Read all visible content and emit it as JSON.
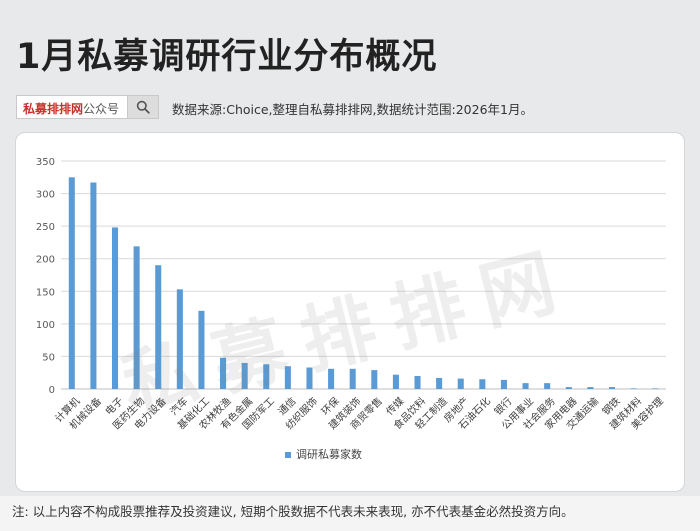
{
  "header": {
    "title": "1月私募调研行业分布概况",
    "brand": "私募排排网",
    "brand_suffix": "公众号",
    "source": "数据来源:Choice,整理自私募排排网,数据统计范围:2026年1月。"
  },
  "watermark": "私募排排网",
  "footer": {
    "note": "注: 以上内容不构成股票推荐及投资建议, 短期个股数据不代表未来表现, 亦不代表基金必然投资方向。"
  },
  "colors": {
    "bar": "#5b9bd5",
    "grid": "#d9d9d9",
    "brand": "#c8312c"
  },
  "chart_data": {
    "type": "bar",
    "title": "",
    "xlabel": "",
    "ylabel": "",
    "ylim": [
      0,
      350
    ],
    "yticks": [
      0,
      50,
      100,
      150,
      200,
      250,
      300,
      350
    ],
    "grid": true,
    "legend_position": "bottom",
    "categories": [
      "计算机",
      "机械设备",
      "电子",
      "医药生物",
      "电力设备",
      "汽车",
      "基础化工",
      "农林牧渔",
      "有色金属",
      "国防军工",
      "通信",
      "纺织服饰",
      "环保",
      "建筑装饰",
      "商贸零售",
      "传媒",
      "食品饮料",
      "轻工制造",
      "房地产",
      "石油石化",
      "银行",
      "公用事业",
      "社会服务",
      "家用电器",
      "交通运输",
      "钢铁",
      "建筑材料",
      "美容护理"
    ],
    "series": [
      {
        "name": "调研私募家数",
        "values": [
          325,
          317,
          248,
          219,
          190,
          153,
          120,
          48,
          40,
          38,
          35,
          33,
          31,
          31,
          29,
          22,
          20,
          17,
          16,
          15,
          14,
          9,
          9,
          3,
          3,
          3,
          1,
          1
        ]
      }
    ]
  }
}
